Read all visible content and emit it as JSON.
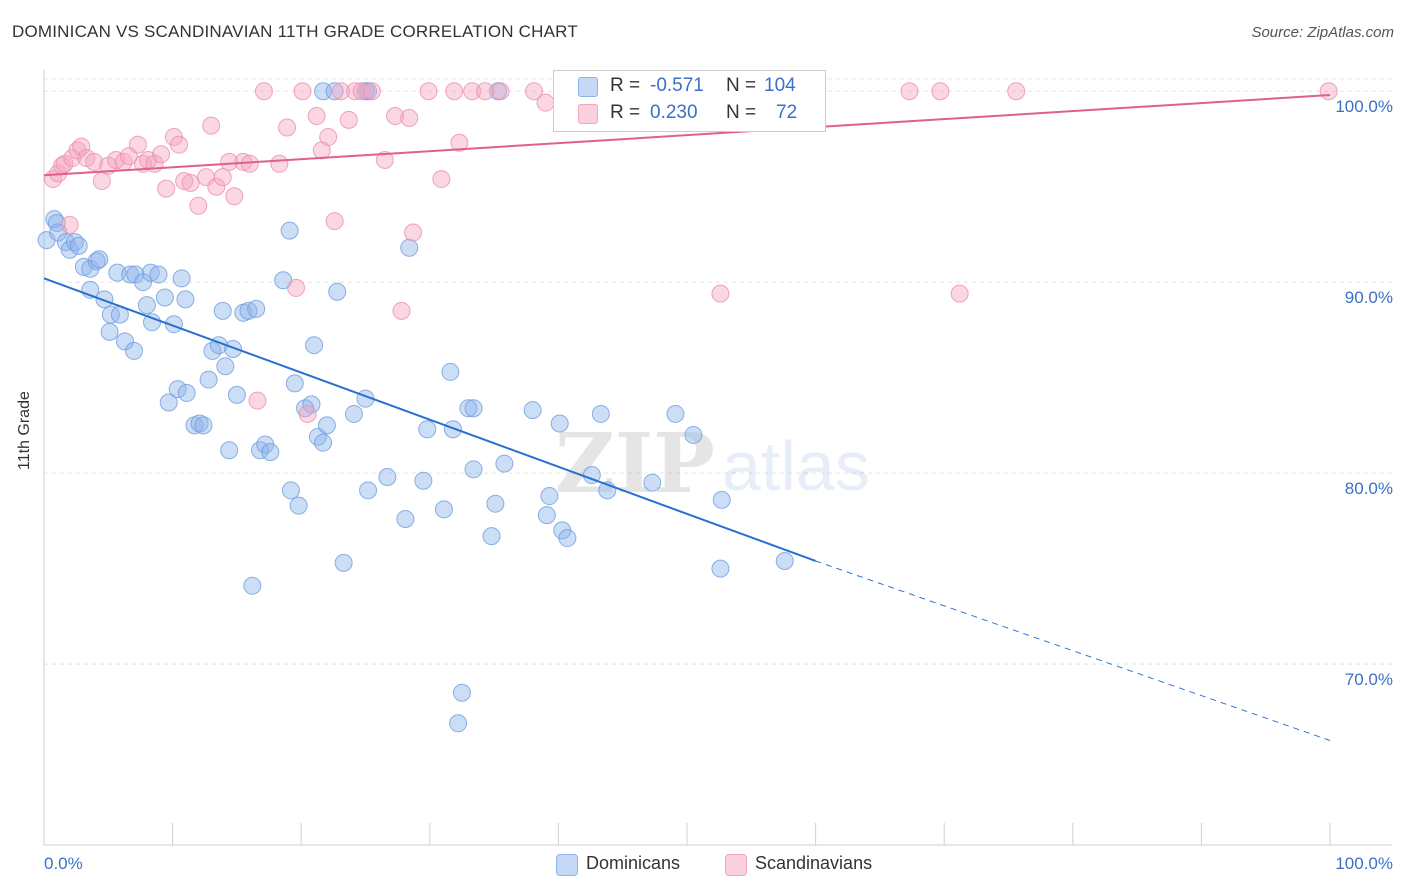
{
  "header": {
    "title": "DOMINICAN VS SCANDINAVIAN 11TH GRADE CORRELATION CHART",
    "source": "Source: ZipAtlas.com"
  },
  "watermark": {
    "zip": "ZIP",
    "atlas": "atlas"
  },
  "stats": [
    {
      "r_label": "R =",
      "r_value": "-0.571",
      "n_label": "N =",
      "n_value": "104",
      "color": "#8fb4ea"
    },
    {
      "r_label": "R =",
      "r_value": "0.230",
      "n_label": "N =",
      "n_value": "72",
      "color": "#f4a7bf"
    }
  ],
  "legend": [
    {
      "label": "Dominicans",
      "color": "#8fb4ea"
    },
    {
      "label": "Scandinavians",
      "color": "#f4a7bf"
    }
  ],
  "chart_data": {
    "type": "scatter",
    "title": "DOMINICAN VS SCANDINAVIAN 11TH GRADE CORRELATION CHART",
    "xlabel": "",
    "ylabel": "11th Grade",
    "xlim": [
      0,
      100
    ],
    "ylim": [
      60.5,
      101
    ],
    "x_tick_labels": [
      "0.0%",
      "100.0%"
    ],
    "y_ticks": [
      70,
      80,
      90,
      100
    ],
    "y_tick_labels": [
      "70.0%",
      "80.0%",
      "90.0%",
      "100.0%"
    ],
    "grid": true,
    "legend_position": "bottom",
    "colors": {
      "blue": "#8fb4ea",
      "blue_line": "#2a6fd0",
      "pink": "#f4a7bf",
      "pink_line": "#e0608a"
    },
    "series": [
      {
        "name": "Dominicans",
        "color": "#8fb4ea",
        "trend": {
          "x0": 0,
          "y0": 90.2,
          "x1": 60,
          "y1": 75.4,
          "dashed_to_x": 100,
          "dashed_to_y": 66.0
        },
        "points": [
          [
            0.2,
            92.2
          ],
          [
            0.8,
            93.3
          ],
          [
            1.0,
            93.1
          ],
          [
            1.1,
            92.6
          ],
          [
            1.7,
            92.1
          ],
          [
            2.0,
            91.7
          ],
          [
            2.4,
            92.1
          ],
          [
            2.7,
            91.9
          ],
          [
            3.1,
            90.8
          ],
          [
            3.6,
            90.7
          ],
          [
            4.1,
            91.1
          ],
          [
            4.3,
            91.2
          ],
          [
            3.6,
            89.6
          ],
          [
            4.7,
            89.1
          ],
          [
            5.2,
            88.3
          ],
          [
            5.1,
            87.4
          ],
          [
            5.9,
            88.3
          ],
          [
            6.3,
            86.9
          ],
          [
            7.0,
            86.4
          ],
          [
            5.7,
            90.5
          ],
          [
            6.7,
            90.4
          ],
          [
            7.1,
            90.4
          ],
          [
            7.7,
            90.0
          ],
          [
            8.0,
            88.8
          ],
          [
            8.3,
            90.5
          ],
          [
            8.4,
            87.9
          ],
          [
            8.9,
            90.4
          ],
          [
            9.4,
            89.2
          ],
          [
            10.1,
            87.8
          ],
          [
            10.7,
            90.2
          ],
          [
            11.0,
            89.1
          ],
          [
            9.7,
            83.7
          ],
          [
            10.4,
            84.4
          ],
          [
            11.1,
            84.2
          ],
          [
            11.7,
            82.5
          ],
          [
            12.1,
            82.6
          ],
          [
            12.4,
            82.5
          ],
          [
            12.8,
            84.9
          ],
          [
            13.1,
            86.4
          ],
          [
            13.6,
            86.7
          ],
          [
            13.9,
            88.5
          ],
          [
            14.1,
            85.6
          ],
          [
            14.7,
            86.5
          ],
          [
            15.0,
            84.1
          ],
          [
            15.5,
            88.4
          ],
          [
            15.9,
            88.5
          ],
          [
            16.5,
            88.6
          ],
          [
            14.4,
            81.2
          ],
          [
            16.8,
            81.2
          ],
          [
            17.2,
            81.5
          ],
          [
            17.6,
            81.1
          ],
          [
            18.6,
            90.1
          ],
          [
            19.1,
            92.7
          ],
          [
            19.5,
            84.7
          ],
          [
            19.2,
            79.1
          ],
          [
            19.8,
            78.3
          ],
          [
            20.3,
            83.4
          ],
          [
            20.8,
            83.6
          ],
          [
            21.0,
            86.7
          ],
          [
            21.3,
            81.9
          ],
          [
            21.7,
            81.6
          ],
          [
            22.0,
            82.5
          ],
          [
            22.8,
            89.5
          ],
          [
            23.3,
            75.3
          ],
          [
            24.1,
            83.1
          ],
          [
            25.0,
            83.9
          ],
          [
            25.2,
            79.1
          ],
          [
            26.7,
            79.8
          ],
          [
            28.1,
            77.6
          ],
          [
            28.4,
            91.8
          ],
          [
            29.5,
            79.6
          ],
          [
            29.8,
            82.3
          ],
          [
            31.1,
            78.1
          ],
          [
            31.6,
            85.3
          ],
          [
            31.8,
            82.3
          ],
          [
            32.5,
            68.5
          ],
          [
            32.2,
            66.9
          ],
          [
            33.0,
            83.4
          ],
          [
            33.4,
            83.4
          ],
          [
            33.4,
            80.2
          ],
          [
            34.8,
            76.7
          ],
          [
            35.1,
            78.4
          ],
          [
            35.8,
            80.5
          ],
          [
            38.0,
            83.3
          ],
          [
            39.1,
            77.8
          ],
          [
            39.3,
            78.8
          ],
          [
            40.1,
            82.6
          ],
          [
            40.3,
            77.0
          ],
          [
            40.7,
            76.6
          ],
          [
            42.6,
            79.9
          ],
          [
            43.3,
            83.1
          ],
          [
            43.8,
            79.1
          ],
          [
            47.3,
            79.5
          ],
          [
            49.1,
            83.1
          ],
          [
            50.5,
            82.0
          ],
          [
            52.6,
            75.0
          ],
          [
            52.7,
            78.6
          ],
          [
            57.6,
            75.4
          ],
          [
            16.2,
            74.1
          ],
          [
            21.7,
            100.0
          ],
          [
            22.6,
            100.0
          ],
          [
            25.0,
            100.0
          ],
          [
            25.2,
            100.0
          ],
          [
            35.3,
            100.0
          ]
        ]
      },
      {
        "name": "Scandinavians",
        "color": "#f4a7bf",
        "trend": {
          "x0": 0,
          "y0": 95.6,
          "x1": 100,
          "y1": 99.8
        },
        "points": [
          [
            0.7,
            95.4
          ],
          [
            1.1,
            95.7
          ],
          [
            1.4,
            96.1
          ],
          [
            1.6,
            96.2
          ],
          [
            2.0,
            93.0
          ],
          [
            2.2,
            96.5
          ],
          [
            2.6,
            96.9
          ],
          [
            2.9,
            97.1
          ],
          [
            3.3,
            96.5
          ],
          [
            3.9,
            96.3
          ],
          [
            4.5,
            95.3
          ],
          [
            5.0,
            96.1
          ],
          [
            5.6,
            96.4
          ],
          [
            6.2,
            96.3
          ],
          [
            6.6,
            96.6
          ],
          [
            7.3,
            97.2
          ],
          [
            7.7,
            96.2
          ],
          [
            8.1,
            96.4
          ],
          [
            8.6,
            96.2
          ],
          [
            9.1,
            96.7
          ],
          [
            9.5,
            94.9
          ],
          [
            10.1,
            97.6
          ],
          [
            10.5,
            97.2
          ],
          [
            10.9,
            95.3
          ],
          [
            11.4,
            95.2
          ],
          [
            12.0,
            94.0
          ],
          [
            12.6,
            95.5
          ],
          [
            13.0,
            98.2
          ],
          [
            13.4,
            95.0
          ],
          [
            13.9,
            95.5
          ],
          [
            14.4,
            96.3
          ],
          [
            14.8,
            94.5
          ],
          [
            15.5,
            96.3
          ],
          [
            16.0,
            96.2
          ],
          [
            16.6,
            83.8
          ],
          [
            17.1,
            100.0
          ],
          [
            18.3,
            96.2
          ],
          [
            18.9,
            98.1
          ],
          [
            19.6,
            89.7
          ],
          [
            20.1,
            100.0
          ],
          [
            20.5,
            83.1
          ],
          [
            21.2,
            98.7
          ],
          [
            21.6,
            96.9
          ],
          [
            22.1,
            97.6
          ],
          [
            22.6,
            93.2
          ],
          [
            23.1,
            100.0
          ],
          [
            23.7,
            98.5
          ],
          [
            24.2,
            100.0
          ],
          [
            24.7,
            100.0
          ],
          [
            25.5,
            100.0
          ],
          [
            26.5,
            96.4
          ],
          [
            27.3,
            98.7
          ],
          [
            27.8,
            88.5
          ],
          [
            28.4,
            98.6
          ],
          [
            28.7,
            92.6
          ],
          [
            29.9,
            100.0
          ],
          [
            30.9,
            95.4
          ],
          [
            31.9,
            100.0
          ],
          [
            32.3,
            97.3
          ],
          [
            33.3,
            100.0
          ],
          [
            34.3,
            100.0
          ],
          [
            35.5,
            100.0
          ],
          [
            38.1,
            100.0
          ],
          [
            39.0,
            99.4
          ],
          [
            40.4,
            100.0
          ],
          [
            44.4,
            100.0
          ],
          [
            52.6,
            89.4
          ],
          [
            67.3,
            100.0
          ],
          [
            69.7,
            100.0
          ],
          [
            71.2,
            89.4
          ],
          [
            75.6,
            100.0
          ],
          [
            99.9,
            100.0
          ]
        ]
      }
    ]
  }
}
